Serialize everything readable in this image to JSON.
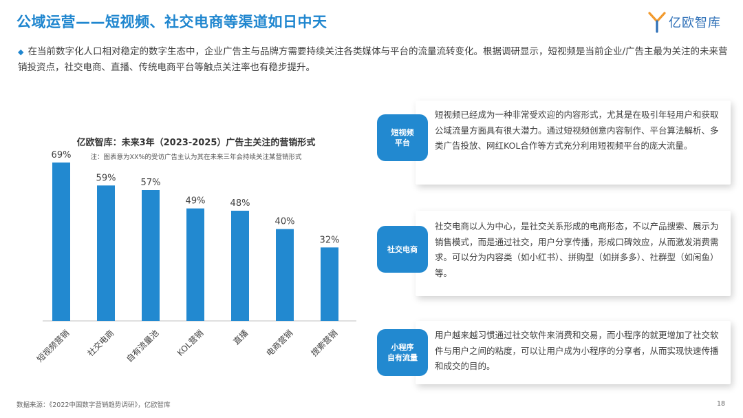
{
  "header": {
    "title": "公域运营——短视频、社交电商等渠道如日中天",
    "logo_text": "亿欧智库"
  },
  "intro": {
    "text": "在当前数字化人口相对稳定的数字生态中，企业广告主与品牌方需要持续关注各类媒体与平台的流量流转变化。根据调研显示，短视频是当前企业/广告主最为关注的未来营销投资点，社交电商、直播、传统电商平台等触点关注率也有稳步提升。"
  },
  "chart": {
    "title": "亿欧智库：未来3年（2023-2025）广告主关注的营销形式",
    "note": "注：图表意为XX%的受访广告主认为其在未来三年会持续关注某营销形式"
  },
  "chart_data": {
    "type": "bar",
    "categories": [
      "短视频营销",
      "社交电商",
      "自有流量池",
      "KOL营销",
      "直播",
      "电商营销",
      "搜索营销"
    ],
    "values": [
      69,
      59,
      57,
      49,
      48,
      40,
      32
    ],
    "value_labels": [
      "69%",
      "59%",
      "57%",
      "49%",
      "48%",
      "40%",
      "32%"
    ],
    "unit": "%",
    "title": "亿欧智库：未来3年（2023-2025）广告主关注的营销形式",
    "xlabel": "",
    "ylabel": "",
    "ylim": [
      0,
      75
    ],
    "grid": false,
    "legend": "none",
    "bar_color": "#2289d0"
  },
  "cards": [
    {
      "badge": "短视频\n平台",
      "text": "短视频已经成为一种非常受欢迎的内容形式，尤其是在吸引年轻用户和获取公域流量方面具有很大潜力。通过短视频创意内容制作、平台算法解析、多类广告投放、网红KOL合作等方式充分利用短视频平台的庞大流量。"
    },
    {
      "badge": "社交电商",
      "text": "社交电商以人为中心，是社交关系形成的电商形态，不以产品搜索、展示为销售模式，而是通过社交，用户分享传播，形成口碑效应，从而激发消费需求。可以分为内容类（如小红书）、拼购型（如拼多多）、社群型（如闲鱼）等。"
    },
    {
      "badge": "小程序\n自有流量",
      "text": "用户越来越习惯通过社交软件来消费和交易，而小程序的就更增加了社交软件与用户之间的粘度，可以让用户成为小程序的分享者，从而实现快速传播和成交的目的。"
    }
  ],
  "footer": {
    "source": "数据来源：《2022中国数字营销趋势调研》，亿欧智库",
    "page": "18"
  },
  "colors": {
    "accent": "#1f86cf",
    "bar": "#2289d0"
  }
}
